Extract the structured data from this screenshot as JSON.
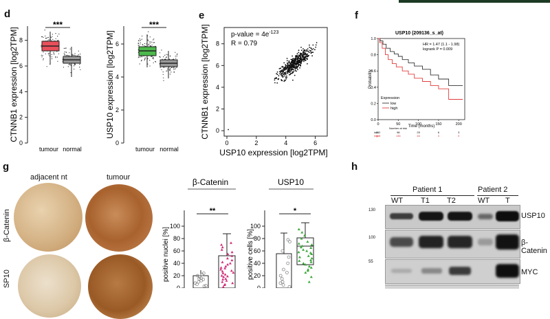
{
  "panels": {
    "d": {
      "letter": "d",
      "left": {
        "ylabel": "CTNNB1 expression [log2TPM]",
        "yticks": [
          "0",
          "2",
          "4",
          "6",
          "8"
        ],
        "cat_tumour": "tumour",
        "cat_normal": "normal",
        "sig": "***",
        "tumour_color": "#e8505b",
        "normal_color": "#9a9a9a"
      },
      "right": {
        "ylabel": "USP10 expression [log2TPM]",
        "yticks": [
          "0",
          "2",
          "4",
          "6"
        ],
        "cat_tumour": "tumour",
        "cat_normal": "normal",
        "sig": "***",
        "tumour_color": "#4cb84c",
        "normal_color": "#9a9a9a"
      }
    },
    "e": {
      "letter": "e",
      "xlabel": "USP10 expression [log2TPM]",
      "ylabel": "CTNNB1 expression [log2TPM]",
      "pvalue": "p-value = 4e",
      "pvalue_exp": "-123",
      "r": "R = 0.79",
      "xticks": [
        "0",
        "2",
        "4",
        "6"
      ],
      "yticks": [
        "0",
        "2",
        "4",
        "6",
        "8"
      ]
    },
    "f": {
      "letter": "f",
      "title": "USP10 (209136_s_at)",
      "hr": "HR = 1.47 (1.1 - 1.98)",
      "logrank": "logrank P = 0.009",
      "ylabel": "Probability",
      "xlabel": "Time (months)",
      "legend_title": "Expression",
      "legend_low": "low",
      "legend_high": "high",
      "xticks": [
        "0",
        "50",
        "100",
        "150",
        "200"
      ],
      "yticks": [
        "0.0",
        "0.2",
        "0.4",
        "0.6",
        "0.8",
        "1.0"
      ],
      "risk_header": "Number at risk",
      "risk_low_label": "low",
      "risk_high_label": "high",
      "risk_low": [
        "232",
        "98",
        "25",
        "6",
        "3"
      ],
      "risk_high": [
        "319",
        "136",
        "46",
        "3",
        "0"
      ],
      "low_color": "#333333",
      "high_color": "#e23b3b"
    },
    "g": {
      "letter": "g",
      "col_adjacent": "adjacent nt",
      "col_tumour": "tumour",
      "row_catenin": "β-Catenin",
      "row_usp10": "SP10",
      "bc_title": "β-Catenin",
      "bc_ylabel": "positive nuclei [%]",
      "bc_yticks": [
        "0",
        "20",
        "40",
        "60",
        "80",
        "100"
      ],
      "bc_sig": "**",
      "usp_title": "USP10",
      "usp_ylabel": "positive cells [%]",
      "usp_yticks": [
        "0",
        "20",
        "40",
        "60",
        "80",
        "100"
      ],
      "usp_sig": "*",
      "nt_color": "#888888",
      "tum_color_bc": "#d0307a",
      "tum_color_usp": "#3aa83a"
    },
    "h": {
      "letter": "h",
      "patient1": "Patient 1",
      "patient2": "Patient 2",
      "lanes": [
        "WT",
        "T1",
        "T2",
        "WT",
        "T"
      ],
      "markers": [
        "130",
        "100",
        "55"
      ],
      "bands": [
        "USP10",
        "β-Catenin",
        "MYC"
      ]
    }
  }
}
